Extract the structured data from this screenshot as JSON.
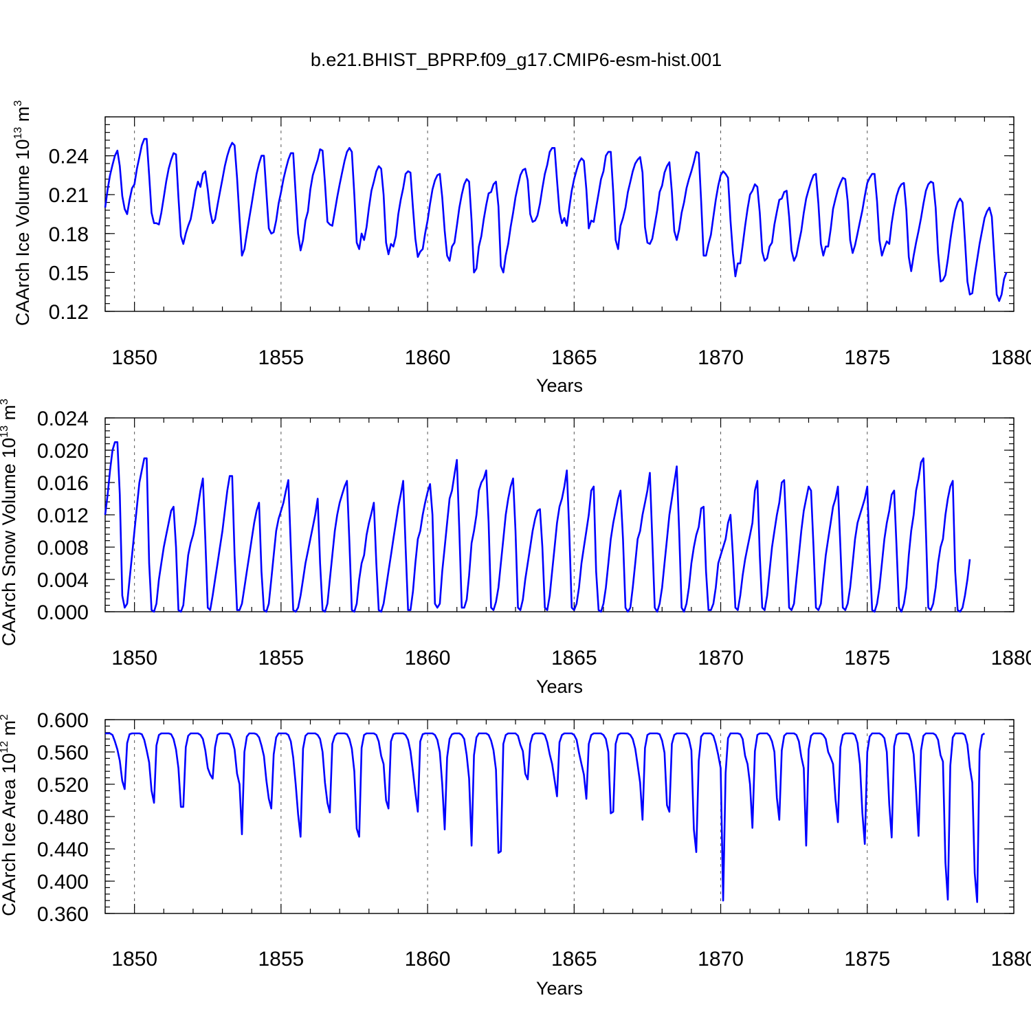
{
  "figure_title": "b.e21.BHIST_BPRP.f09_g17.CMIP6-esm-hist.001",
  "colors": {
    "series": "#0000ff",
    "axes": "#000000",
    "grid": "#555555"
  },
  "chart_data": [
    {
      "type": "line",
      "ylabel": {
        "base": "CAArch Ice Volume 10",
        "exp": "13",
        "unit": " m",
        "unit_exp": "3"
      },
      "xlabel": "Years",
      "xlim": [
        1849.0,
        1880.0
      ],
      "xticks": [
        1850,
        1855,
        1860,
        1865,
        1870,
        1875,
        1880
      ],
      "ylim": [
        0.12,
        0.27
      ],
      "yticks": [
        0.12,
        0.15,
        0.18,
        0.21,
        0.24
      ],
      "ytick_labels": [
        "0.12",
        "0.15",
        "0.18",
        "0.21",
        "0.24"
      ],
      "x_start": 1849.0,
      "x_step": 0.0833333,
      "values": [
        0.2,
        0.214,
        0.225,
        0.233,
        0.24,
        0.244,
        0.232,
        0.209,
        0.199,
        0.195,
        0.206,
        0.215,
        0.218,
        0.23,
        0.239,
        0.248,
        0.253,
        0.253,
        0.225,
        0.196,
        0.188,
        0.188,
        0.187,
        0.196,
        0.208,
        0.22,
        0.23,
        0.237,
        0.242,
        0.241,
        0.208,
        0.178,
        0.172,
        0.18,
        0.186,
        0.191,
        0.201,
        0.213,
        0.22,
        0.216,
        0.226,
        0.228,
        0.214,
        0.197,
        0.188,
        0.191,
        0.202,
        0.212,
        0.222,
        0.232,
        0.24,
        0.246,
        0.25,
        0.248,
        0.223,
        0.192,
        0.163,
        0.168,
        0.18,
        0.192,
        0.203,
        0.215,
        0.226,
        0.234,
        0.24,
        0.24,
        0.212,
        0.184,
        0.18,
        0.181,
        0.19,
        0.203,
        0.212,
        0.222,
        0.23,
        0.237,
        0.242,
        0.242,
        0.21,
        0.18,
        0.167,
        0.175,
        0.19,
        0.197,
        0.214,
        0.225,
        0.231,
        0.237,
        0.245,
        0.244,
        0.219,
        0.189,
        0.187,
        0.186,
        0.197,
        0.208,
        0.218,
        0.227,
        0.236,
        0.243,
        0.246,
        0.243,
        0.21,
        0.173,
        0.168,
        0.18,
        0.175,
        0.185,
        0.2,
        0.213,
        0.22,
        0.228,
        0.232,
        0.23,
        0.21,
        0.173,
        0.164,
        0.172,
        0.17,
        0.178,
        0.195,
        0.206,
        0.215,
        0.226,
        0.228,
        0.227,
        0.2,
        0.176,
        0.162,
        0.166,
        0.168,
        0.18,
        0.19,
        0.203,
        0.214,
        0.221,
        0.225,
        0.226,
        0.208,
        0.182,
        0.163,
        0.159,
        0.17,
        0.173,
        0.186,
        0.2,
        0.21,
        0.218,
        0.222,
        0.22,
        0.19,
        0.15,
        0.153,
        0.17,
        0.178,
        0.191,
        0.202,
        0.211,
        0.212,
        0.218,
        0.22,
        0.201,
        0.155,
        0.15,
        0.163,
        0.172,
        0.185,
        0.196,
        0.208,
        0.217,
        0.225,
        0.229,
        0.23,
        0.221,
        0.195,
        0.189,
        0.19,
        0.194,
        0.203,
        0.215,
        0.226,
        0.233,
        0.243,
        0.246,
        0.246,
        0.221,
        0.197,
        0.188,
        0.192,
        0.186,
        0.2,
        0.213,
        0.222,
        0.229,
        0.235,
        0.238,
        0.236,
        0.214,
        0.184,
        0.19,
        0.189,
        0.2,
        0.211,
        0.222,
        0.228,
        0.24,
        0.243,
        0.243,
        0.212,
        0.175,
        0.168,
        0.186,
        0.192,
        0.2,
        0.212,
        0.22,
        0.228,
        0.234,
        0.237,
        0.239,
        0.227,
        0.185,
        0.173,
        0.172,
        0.176,
        0.187,
        0.198,
        0.212,
        0.217,
        0.227,
        0.232,
        0.235,
        0.212,
        0.182,
        0.175,
        0.183,
        0.196,
        0.204,
        0.215,
        0.222,
        0.228,
        0.235,
        0.243,
        0.242,
        0.205,
        0.163,
        0.163,
        0.172,
        0.179,
        0.193,
        0.206,
        0.217,
        0.225,
        0.228,
        0.226,
        0.223,
        0.19,
        0.165,
        0.147,
        0.157,
        0.157,
        0.171,
        0.186,
        0.199,
        0.21,
        0.213,
        0.218,
        0.216,
        0.196,
        0.166,
        0.159,
        0.161,
        0.17,
        0.173,
        0.187,
        0.197,
        0.206,
        0.207,
        0.212,
        0.213,
        0.193,
        0.167,
        0.159,
        0.163,
        0.173,
        0.182,
        0.196,
        0.207,
        0.214,
        0.22,
        0.225,
        0.226,
        0.203,
        0.172,
        0.163,
        0.17,
        0.17,
        0.183,
        0.199,
        0.207,
        0.214,
        0.219,
        0.223,
        0.222,
        0.205,
        0.175,
        0.165,
        0.171,
        0.18,
        0.189,
        0.198,
        0.209,
        0.219,
        0.223,
        0.226,
        0.226,
        0.205,
        0.175,
        0.163,
        0.169,
        0.174,
        0.172,
        0.188,
        0.2,
        0.209,
        0.215,
        0.218,
        0.219,
        0.198,
        0.162,
        0.151,
        0.163,
        0.173,
        0.182,
        0.192,
        0.203,
        0.213,
        0.218,
        0.22,
        0.219,
        0.2,
        0.165,
        0.143,
        0.144,
        0.148,
        0.16,
        0.175,
        0.188,
        0.198,
        0.204,
        0.207,
        0.204,
        0.175,
        0.143,
        0.133,
        0.134,
        0.148,
        0.16,
        0.172,
        0.182,
        0.192,
        0.197,
        0.2,
        0.193,
        0.162,
        0.133,
        0.128,
        0.133,
        0.145,
        0.15
      ]
    },
    {
      "type": "line",
      "ylabel": {
        "base": "CAArch Snow Volume 10",
        "exp": "13",
        "unit": " m",
        "unit_exp": "3"
      },
      "xlabel": "Years",
      "xlim": [
        1849.0,
        1880.0
      ],
      "xticks": [
        1850,
        1855,
        1860,
        1865,
        1870,
        1875,
        1880
      ],
      "ylim": [
        0.0,
        0.024
      ],
      "yticks": [
        0.0,
        0.004,
        0.008,
        0.012,
        0.016,
        0.02,
        0.024
      ],
      "ytick_labels": [
        "0.000",
        "0.004",
        "0.008",
        "0.012",
        "0.016",
        "0.020",
        "0.024"
      ],
      "x_start": 1849.0,
      "x_step": 0.0833333,
      "values": [
        0.012,
        0.0145,
        0.0175,
        0.02,
        0.021,
        0.021,
        0.0145,
        0.002,
        0.0005,
        0.001,
        0.004,
        0.007,
        0.01,
        0.013,
        0.016,
        0.0175,
        0.019,
        0.019,
        0.006,
        0.0002,
        0.0,
        0.001,
        0.004,
        0.006,
        0.008,
        0.0095,
        0.011,
        0.0125,
        0.013,
        0.008,
        0.0002,
        0.0,
        0.0008,
        0.004,
        0.007,
        0.0085,
        0.0095,
        0.011,
        0.013,
        0.015,
        0.0165,
        0.009,
        0.0005,
        0.0002,
        0.002,
        0.004,
        0.006,
        0.008,
        0.01,
        0.0125,
        0.015,
        0.0168,
        0.0168,
        0.007,
        0.0002,
        0.0002,
        0.001,
        0.003,
        0.005,
        0.007,
        0.009,
        0.011,
        0.0125,
        0.0135,
        0.005,
        0.0002,
        0.0,
        0.001,
        0.004,
        0.007,
        0.01,
        0.0115,
        0.0125,
        0.0135,
        0.015,
        0.0163,
        0.008,
        0.0002,
        0.0,
        0.0005,
        0.002,
        0.004,
        0.006,
        0.0075,
        0.009,
        0.0105,
        0.012,
        0.014,
        0.006,
        0.0002,
        0.0,
        0.001,
        0.004,
        0.007,
        0.01,
        0.012,
        0.0135,
        0.0145,
        0.0155,
        0.0162,
        0.0085,
        0.0002,
        0.0,
        0.001,
        0.004,
        0.006,
        0.007,
        0.0095,
        0.011,
        0.0122,
        0.0135,
        0.006,
        0.0002,
        0.0,
        0.001,
        0.003,
        0.005,
        0.007,
        0.009,
        0.011,
        0.013,
        0.0145,
        0.0162,
        0.008,
        0.0002,
        0.0002,
        0.0025,
        0.006,
        0.009,
        0.01,
        0.012,
        0.0135,
        0.0148,
        0.0158,
        0.012,
        0.001,
        0.0005,
        0.001,
        0.005,
        0.008,
        0.011,
        0.014,
        0.015,
        0.017,
        0.0188,
        0.01,
        0.0005,
        0.0005,
        0.0015,
        0.0045,
        0.0085,
        0.01,
        0.012,
        0.015,
        0.016,
        0.0165,
        0.0175,
        0.011,
        0.0005,
        0.0002,
        0.0012,
        0.003,
        0.006,
        0.009,
        0.012,
        0.014,
        0.0155,
        0.0165,
        0.01,
        0.0005,
        0.0002,
        0.0015,
        0.004,
        0.006,
        0.008,
        0.01,
        0.0115,
        0.0125,
        0.0127,
        0.008,
        0.0005,
        0.0002,
        0.002,
        0.005,
        0.008,
        0.011,
        0.013,
        0.014,
        0.0155,
        0.0175,
        0.01,
        0.0005,
        0.0002,
        0.001,
        0.003,
        0.006,
        0.008,
        0.01,
        0.012,
        0.015,
        0.0155,
        0.005,
        0.0002,
        0.0,
        0.001,
        0.003,
        0.006,
        0.009,
        0.011,
        0.0125,
        0.014,
        0.015,
        0.009,
        0.0005,
        0.0,
        0.0005,
        0.003,
        0.006,
        0.009,
        0.01,
        0.012,
        0.0135,
        0.015,
        0.0172,
        0.009,
        0.0005,
        0.0,
        0.001,
        0.003,
        0.006,
        0.009,
        0.012,
        0.014,
        0.016,
        0.018,
        0.01,
        0.0005,
        0.0,
        0.001,
        0.003,
        0.006,
        0.008,
        0.0095,
        0.0105,
        0.0128,
        0.013,
        0.005,
        0.0002,
        0.0002,
        0.001,
        0.003,
        0.006,
        0.007,
        0.008,
        0.009,
        0.011,
        0.012,
        0.007,
        0.0005,
        0.0002,
        0.002,
        0.0045,
        0.0065,
        0.008,
        0.0095,
        0.011,
        0.015,
        0.0162,
        0.007,
        0.0005,
        0.0002,
        0.002,
        0.005,
        0.008,
        0.01,
        0.012,
        0.0135,
        0.016,
        0.0163,
        0.009,
        0.0005,
        0.0002,
        0.001,
        0.004,
        0.007,
        0.01,
        0.0125,
        0.014,
        0.0155,
        0.015,
        0.008,
        0.0005,
        0.0002,
        0.001,
        0.004,
        0.007,
        0.009,
        0.011,
        0.013,
        0.014,
        0.0155,
        0.008,
        0.0005,
        0.0002,
        0.001,
        0.003,
        0.006,
        0.009,
        0.011,
        0.012,
        0.013,
        0.014,
        0.0155,
        0.007,
        0.0002,
        0.0,
        0.001,
        0.003,
        0.006,
        0.009,
        0.011,
        0.0125,
        0.0145,
        0.015,
        0.008,
        0.0005,
        0.0,
        0.001,
        0.003,
        0.007,
        0.01,
        0.012,
        0.015,
        0.0165,
        0.0185,
        0.019,
        0.01,
        0.0005,
        0.0002,
        0.001,
        0.003,
        0.006,
        0.008,
        0.009,
        0.012,
        0.014,
        0.0155,
        0.0162,
        0.005,
        0.0002,
        0.0,
        0.0005,
        0.002,
        0.004,
        0.0065
      ]
    },
    {
      "type": "line",
      "ylabel": {
        "base": "CAArch Ice Area 10",
        "exp": "12",
        "unit": " m",
        "unit_exp": "2"
      },
      "xlabel": "Years",
      "xlim": [
        1849.0,
        1880.0
      ],
      "xticks": [
        1850,
        1855,
        1860,
        1865,
        1870,
        1875,
        1880
      ],
      "ylim": [
        0.36,
        0.6
      ],
      "yticks": [
        0.36,
        0.4,
        0.44,
        0.48,
        0.52,
        0.56,
        0.6
      ],
      "ytick_labels": [
        "0.360",
        "0.400",
        "0.440",
        "0.480",
        "0.520",
        "0.560",
        "0.600"
      ],
      "x_start": 1849.0,
      "x_step": 0.0833333,
      "values": [
        0.583,
        0.583,
        0.583,
        0.581,
        0.573,
        0.563,
        0.549,
        0.524,
        0.514,
        0.571,
        0.582,
        0.583,
        0.583,
        0.583,
        0.583,
        0.582,
        0.575,
        0.562,
        0.547,
        0.512,
        0.497,
        0.568,
        0.581,
        0.583,
        0.583,
        0.583,
        0.583,
        0.582,
        0.576,
        0.563,
        0.54,
        0.492,
        0.492,
        0.566,
        0.58,
        0.583,
        0.583,
        0.583,
        0.583,
        0.581,
        0.576,
        0.562,
        0.54,
        0.532,
        0.527,
        0.566,
        0.581,
        0.583,
        0.583,
        0.583,
        0.583,
        0.582,
        0.575,
        0.563,
        0.533,
        0.52,
        0.458,
        0.56,
        0.579,
        0.583,
        0.583,
        0.583,
        0.582,
        0.578,
        0.568,
        0.555,
        0.525,
        0.502,
        0.49,
        0.557,
        0.578,
        0.583,
        0.583,
        0.583,
        0.583,
        0.581,
        0.573,
        0.553,
        0.52,
        0.483,
        0.455,
        0.564,
        0.58,
        0.583,
        0.583,
        0.583,
        0.583,
        0.581,
        0.576,
        0.56,
        0.522,
        0.497,
        0.485,
        0.57,
        0.58,
        0.583,
        0.583,
        0.583,
        0.583,
        0.582,
        0.576,
        0.564,
        0.536,
        0.465,
        0.455,
        0.565,
        0.581,
        0.583,
        0.583,
        0.583,
        0.583,
        0.581,
        0.573,
        0.555,
        0.545,
        0.5,
        0.49,
        0.573,
        0.582,
        0.583,
        0.583,
        0.583,
        0.583,
        0.581,
        0.575,
        0.561,
        0.536,
        0.51,
        0.486,
        0.573,
        0.582,
        0.583,
        0.583,
        0.583,
        0.583,
        0.581,
        0.575,
        0.56,
        0.52,
        0.464,
        0.553,
        0.576,
        0.582,
        0.583,
        0.583,
        0.583,
        0.581,
        0.576,
        0.556,
        0.527,
        0.444,
        0.556,
        0.578,
        0.583,
        0.583,
        0.583,
        0.583,
        0.581,
        0.574,
        0.562,
        0.538,
        0.435,
        0.437,
        0.57,
        0.581,
        0.583,
        0.583,
        0.583,
        0.583,
        0.58,
        0.569,
        0.561,
        0.533,
        0.526,
        0.57,
        0.581,
        0.583,
        0.583,
        0.583,
        0.583,
        0.581,
        0.572,
        0.557,
        0.545,
        0.525,
        0.505,
        0.572,
        0.581,
        0.583,
        0.583,
        0.583,
        0.583,
        0.581,
        0.575,
        0.559,
        0.545,
        0.532,
        0.502,
        0.57,
        0.581,
        0.583,
        0.583,
        0.583,
        0.583,
        0.581,
        0.576,
        0.56,
        0.484,
        0.486,
        0.57,
        0.581,
        0.583,
        0.583,
        0.583,
        0.583,
        0.581,
        0.576,
        0.564,
        0.544,
        0.522,
        0.476,
        0.565,
        0.581,
        0.583,
        0.583,
        0.583,
        0.583,
        0.582,
        0.574,
        0.559,
        0.494,
        0.486,
        0.57,
        0.581,
        0.583,
        0.583,
        0.583,
        0.583,
        0.582,
        0.576,
        0.562,
        0.464,
        0.436,
        0.549,
        0.579,
        0.583,
        0.583,
        0.583,
        0.583,
        0.58,
        0.57,
        0.556,
        0.54,
        0.376,
        0.534,
        0.577,
        0.583,
        0.583,
        0.583,
        0.583,
        0.582,
        0.576,
        0.555,
        0.545,
        0.52,
        0.466,
        0.561,
        0.581,
        0.583,
        0.583,
        0.583,
        0.583,
        0.58,
        0.573,
        0.56,
        0.503,
        0.476,
        0.562,
        0.58,
        0.583,
        0.583,
        0.583,
        0.583,
        0.581,
        0.573,
        0.554,
        0.54,
        0.444,
        0.563,
        0.58,
        0.583,
        0.583,
        0.583,
        0.583,
        0.581,
        0.576,
        0.56,
        0.553,
        0.545,
        0.501,
        0.473,
        0.566,
        0.581,
        0.583,
        0.583,
        0.583,
        0.583,
        0.581,
        0.571,
        0.545,
        0.484,
        0.446,
        0.56,
        0.579,
        0.583,
        0.583,
        0.583,
        0.583,
        0.581,
        0.577,
        0.56,
        0.495,
        0.454,
        0.567,
        0.581,
        0.583,
        0.583,
        0.583,
        0.583,
        0.582,
        0.573,
        0.557,
        0.512,
        0.456,
        0.562,
        0.58,
        0.583,
        0.583,
        0.583,
        0.583,
        0.581,
        0.575,
        0.556,
        0.548,
        0.423,
        0.377,
        0.543,
        0.578,
        0.583,
        0.583,
        0.583,
        0.583,
        0.581,
        0.569,
        0.541,
        0.522,
        0.41,
        0.374,
        0.561,
        0.581,
        0.583
      ]
    }
  ]
}
